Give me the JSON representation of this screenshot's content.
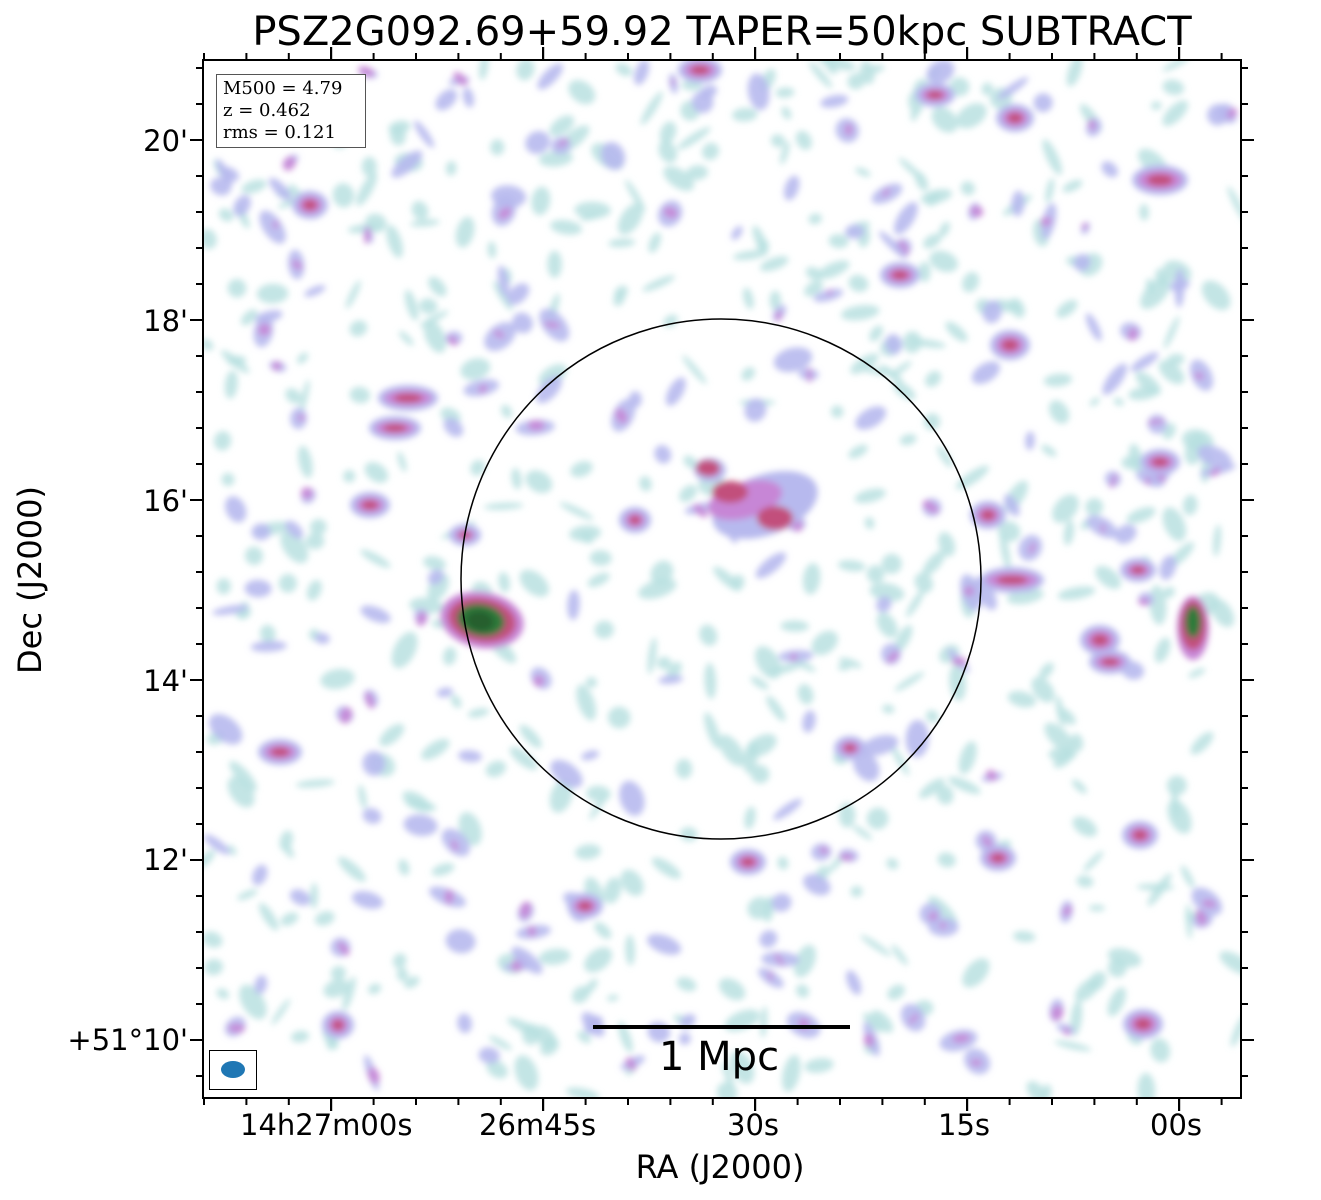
{
  "title": "PSZ2G092.69+59.92 TAPER=50kpc SUBTRACT",
  "axes": {
    "xlabel": "RA (J2000)",
    "ylabel": "Dec (J2000)",
    "x_ticks": [
      "14h27m00s",
      "26m45s",
      "30s",
      "15s",
      "00s"
    ],
    "y_ticks": [
      "20'",
      "18'",
      "16'",
      "14'",
      "12'",
      "+51°10'"
    ]
  },
  "info": {
    "line1": "M500 = 4.79",
    "line2": "z = 0.462",
    "line3": "rms = 0.121"
  },
  "scalebar": {
    "label": "1 Mpc"
  },
  "colors": {
    "faint": "#b8e0e0",
    "low": "#b7b9ee",
    "mid": "#c786d6",
    "high": "#c2507c",
    "peak": "#2e7a3a",
    "beam": "#1f77b4"
  }
}
